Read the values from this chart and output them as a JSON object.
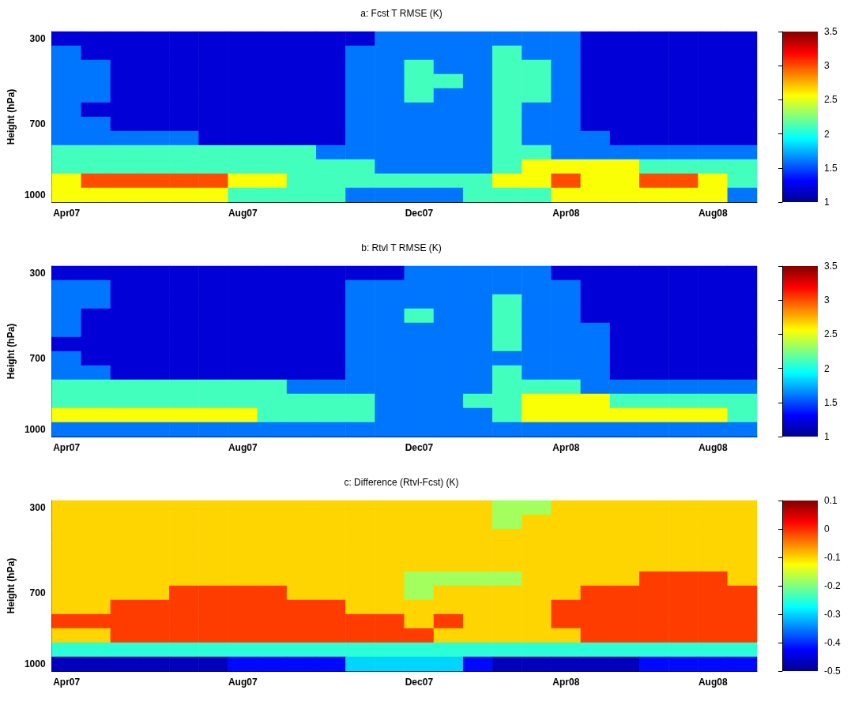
{
  "chart_data": [
    {
      "type": "heatmap",
      "title": "a: Fcst T RMSE (K)",
      "ylabel": "Height (hPa)",
      "categories": [
        "Apr07",
        null,
        null,
        null,
        null,
        null,
        "Aug07",
        null,
        null,
        null,
        null,
        null,
        "Dec07",
        null,
        null,
        null,
        null,
        "Apr08",
        null,
        null,
        null,
        null,
        "Aug08",
        null
      ],
      "y_categories": [
        "300",
        null,
        null,
        null,
        null,
        null,
        "700",
        null,
        null,
        null,
        null,
        "1000"
      ],
      "clim": [
        1,
        3.5
      ],
      "cticks": [
        1,
        1.5,
        2,
        2.5,
        3,
        3.5
      ],
      "cells": [
        [
          1.2,
          1.2,
          1.2,
          1.2,
          1.2,
          1.2,
          1.2,
          1.2,
          1.2,
          1.2,
          1.2,
          1.6,
          1.6,
          1.6,
          1.6,
          1.6,
          1.6,
          1.6,
          1.2,
          1.2,
          1.2,
          1.2,
          1.2,
          1.2
        ],
        [
          1.6,
          1.2,
          1.2,
          1.2,
          1.2,
          1.2,
          1.2,
          1.2,
          1.2,
          1.2,
          1.6,
          1.6,
          1.6,
          1.6,
          1.6,
          2.1,
          1.6,
          1.6,
          1.2,
          1.2,
          1.2,
          1.2,
          1.2,
          1.2
        ],
        [
          1.6,
          1.6,
          1.2,
          1.2,
          1.2,
          1.2,
          1.2,
          1.2,
          1.2,
          1.2,
          1.6,
          1.6,
          2.1,
          1.6,
          1.6,
          2.1,
          2.1,
          1.6,
          1.2,
          1.2,
          1.2,
          1.2,
          1.2,
          1.2
        ],
        [
          1.6,
          1.6,
          1.2,
          1.2,
          1.2,
          1.2,
          1.2,
          1.2,
          1.2,
          1.2,
          1.6,
          1.6,
          2.1,
          2.1,
          1.6,
          2.1,
          2.1,
          1.6,
          1.2,
          1.2,
          1.2,
          1.2,
          1.2,
          1.2
        ],
        [
          1.6,
          1.6,
          1.2,
          1.2,
          1.2,
          1.2,
          1.2,
          1.2,
          1.2,
          1.2,
          1.6,
          1.6,
          2.1,
          1.6,
          1.6,
          2.1,
          2.1,
          1.6,
          1.2,
          1.2,
          1.2,
          1.2,
          1.2,
          1.2
        ],
        [
          1.6,
          1.2,
          1.2,
          1.2,
          1.2,
          1.2,
          1.2,
          1.2,
          1.2,
          1.2,
          1.6,
          1.6,
          1.6,
          1.6,
          1.6,
          2.1,
          1.6,
          1.6,
          1.2,
          1.2,
          1.2,
          1.2,
          1.2,
          1.2
        ],
        [
          1.6,
          1.6,
          1.2,
          1.2,
          1.2,
          1.2,
          1.2,
          1.2,
          1.2,
          1.2,
          1.6,
          1.6,
          1.6,
          1.6,
          1.6,
          2.1,
          1.6,
          1.6,
          1.2,
          1.2,
          1.2,
          1.2,
          1.2,
          1.2
        ],
        [
          1.6,
          1.6,
          1.6,
          1.6,
          1.6,
          1.2,
          1.2,
          1.2,
          1.2,
          1.2,
          1.6,
          1.6,
          1.6,
          1.6,
          1.6,
          2.1,
          1.6,
          1.6,
          1.6,
          1.2,
          1.2,
          1.2,
          1.2,
          1.2
        ],
        [
          2.1,
          2.1,
          2.1,
          2.1,
          2.1,
          2.1,
          2.1,
          2.1,
          2.1,
          1.6,
          1.6,
          1.6,
          1.6,
          1.6,
          1.6,
          2.1,
          2.1,
          1.6,
          1.6,
          1.6,
          1.6,
          1.6,
          1.6,
          1.6
        ],
        [
          2.1,
          2.1,
          2.1,
          2.1,
          2.1,
          2.1,
          2.1,
          2.1,
          2.1,
          2.1,
          2.1,
          1.6,
          1.6,
          1.6,
          1.6,
          2.1,
          2.55,
          2.55,
          2.55,
          2.55,
          2.1,
          2.1,
          2.1,
          2.1
        ],
        [
          2.55,
          3,
          3,
          3,
          3,
          3,
          2.55,
          2.55,
          2.1,
          2.1,
          2.1,
          2.1,
          2.1,
          2.1,
          2.1,
          2.55,
          2.55,
          3,
          2.55,
          2.55,
          3,
          3,
          2.55,
          2.1
        ],
        [
          2.55,
          2.55,
          2.55,
          2.55,
          2.55,
          2.55,
          2.1,
          2.1,
          2.1,
          2.1,
          1.6,
          1.6,
          1.6,
          1.6,
          2.1,
          2.1,
          2.1,
          2.55,
          2.55,
          2.55,
          2.55,
          2.55,
          2.55,
          1.6
        ]
      ]
    },
    {
      "type": "heatmap",
      "title": "b: Rtvl T RMSE (K)",
      "ylabel": "Height (hPa)",
      "categories": [
        "Apr07",
        null,
        null,
        null,
        null,
        null,
        "Aug07",
        null,
        null,
        null,
        null,
        null,
        "Dec07",
        null,
        null,
        null,
        null,
        "Apr08",
        null,
        null,
        null,
        null,
        "Aug08",
        null
      ],
      "y_categories": [
        "300",
        null,
        null,
        null,
        null,
        null,
        "700",
        null,
        null,
        null,
        null,
        "1000"
      ],
      "clim": [
        1,
        3.5
      ],
      "cticks": [
        1,
        1.5,
        2,
        2.5,
        3,
        3.5
      ],
      "cells": [
        [
          1.2,
          1.2,
          1.2,
          1.2,
          1.2,
          1.2,
          1.2,
          1.2,
          1.2,
          1.2,
          1.2,
          1.2,
          1.6,
          1.6,
          1.6,
          1.6,
          1.6,
          1.2,
          1.2,
          1.2,
          1.2,
          1.2,
          1.2,
          1.2
        ],
        [
          1.6,
          1.6,
          1.2,
          1.2,
          1.2,
          1.2,
          1.2,
          1.2,
          1.2,
          1.2,
          1.6,
          1.6,
          1.6,
          1.6,
          1.6,
          1.6,
          1.6,
          1.6,
          1.2,
          1.2,
          1.2,
          1.2,
          1.2,
          1.2
        ],
        [
          1.6,
          1.6,
          1.2,
          1.2,
          1.2,
          1.2,
          1.2,
          1.2,
          1.2,
          1.2,
          1.6,
          1.6,
          1.6,
          1.6,
          1.6,
          2.1,
          1.6,
          1.6,
          1.2,
          1.2,
          1.2,
          1.2,
          1.2,
          1.2
        ],
        [
          1.6,
          1.2,
          1.2,
          1.2,
          1.2,
          1.2,
          1.2,
          1.2,
          1.2,
          1.2,
          1.6,
          1.6,
          2.1,
          1.6,
          1.6,
          2.1,
          1.6,
          1.6,
          1.2,
          1.2,
          1.2,
          1.2,
          1.2,
          1.2
        ],
        [
          1.6,
          1.2,
          1.2,
          1.2,
          1.2,
          1.2,
          1.2,
          1.2,
          1.2,
          1.2,
          1.6,
          1.6,
          1.6,
          1.6,
          1.6,
          2.1,
          1.6,
          1.6,
          1.6,
          1.2,
          1.2,
          1.2,
          1.2,
          1.2
        ],
        [
          1.2,
          1.2,
          1.2,
          1.2,
          1.2,
          1.2,
          1.2,
          1.2,
          1.2,
          1.2,
          1.6,
          1.6,
          1.6,
          1.6,
          1.6,
          2.1,
          1.6,
          1.6,
          1.6,
          1.2,
          1.2,
          1.2,
          1.2,
          1.2
        ],
        [
          1.6,
          1.2,
          1.2,
          1.2,
          1.2,
          1.2,
          1.2,
          1.2,
          1.2,
          1.2,
          1.6,
          1.6,
          1.6,
          1.6,
          1.6,
          1.6,
          1.6,
          1.6,
          1.6,
          1.2,
          1.2,
          1.2,
          1.2,
          1.2
        ],
        [
          1.6,
          1.6,
          1.2,
          1.2,
          1.2,
          1.2,
          1.2,
          1.2,
          1.2,
          1.2,
          1.6,
          1.6,
          1.6,
          1.6,
          1.6,
          2.1,
          1.6,
          1.6,
          1.6,
          1.2,
          1.2,
          1.2,
          1.2,
          1.2
        ],
        [
          2.1,
          2.1,
          2.1,
          2.1,
          2.1,
          2.1,
          2.1,
          2.1,
          1.6,
          1.6,
          1.6,
          1.6,
          1.6,
          1.6,
          1.6,
          2.1,
          2.1,
          2.1,
          1.6,
          1.6,
          1.6,
          1.6,
          1.6,
          1.6
        ],
        [
          2.1,
          2.1,
          2.1,
          2.1,
          2.1,
          2.1,
          2.1,
          2.1,
          2.1,
          2.1,
          2.1,
          1.6,
          1.6,
          1.6,
          2.1,
          2.1,
          2.55,
          2.55,
          2.55,
          2.1,
          2.1,
          2.1,
          2.1,
          2.1
        ],
        [
          2.55,
          2.55,
          2.55,
          2.55,
          2.55,
          2.55,
          2.55,
          2.1,
          2.1,
          2.1,
          2.1,
          1.6,
          1.6,
          1.6,
          1.6,
          2.1,
          2.55,
          2.55,
          2.55,
          2.55,
          2.55,
          2.55,
          2.55,
          2.1
        ],
        [
          1.6,
          1.6,
          1.6,
          1.6,
          1.6,
          1.6,
          1.6,
          1.6,
          1.6,
          1.6,
          1.6,
          1.6,
          1.6,
          1.6,
          1.6,
          1.6,
          1.6,
          1.6,
          1.6,
          1.6,
          1.6,
          1.6,
          1.6,
          1.6
        ]
      ]
    },
    {
      "type": "heatmap",
      "title": "c: Difference (Rtvl-Fcst) (K)",
      "ylabel": "Height (hPa)",
      "categories": [
        "Apr07",
        null,
        null,
        null,
        null,
        null,
        "Aug07",
        null,
        null,
        null,
        null,
        null,
        "Dec07",
        null,
        null,
        null,
        null,
        "Apr08",
        null,
        null,
        null,
        null,
        "Aug08",
        null
      ],
      "y_categories": [
        "300",
        null,
        null,
        null,
        null,
        null,
        "700",
        null,
        null,
        null,
        null,
        "1000"
      ],
      "clim": [
        -0.5,
        0.1
      ],
      "cticks": [
        -0.5,
        -0.4,
        -0.3,
        -0.2,
        -0.1,
        0,
        0.1
      ],
      "cells": [
        [
          -0.1,
          -0.1,
          -0.1,
          -0.1,
          -0.1,
          -0.1,
          -0.1,
          -0.1,
          -0.1,
          -0.1,
          -0.1,
          -0.1,
          -0.1,
          -0.1,
          -0.1,
          -0.18,
          -0.18,
          -0.1,
          -0.1,
          -0.1,
          -0.1,
          -0.1,
          -0.1,
          -0.1
        ],
        [
          -0.1,
          -0.1,
          -0.1,
          -0.1,
          -0.1,
          -0.1,
          -0.1,
          -0.1,
          -0.1,
          -0.1,
          -0.1,
          -0.1,
          -0.1,
          -0.1,
          -0.1,
          -0.18,
          -0.1,
          -0.1,
          -0.1,
          -0.1,
          -0.1,
          -0.1,
          -0.1,
          -0.1
        ],
        [
          -0.1,
          -0.1,
          -0.1,
          -0.1,
          -0.1,
          -0.1,
          -0.1,
          -0.1,
          -0.1,
          -0.1,
          -0.1,
          -0.1,
          -0.1,
          -0.1,
          -0.1,
          -0.1,
          -0.1,
          -0.1,
          -0.1,
          -0.1,
          -0.1,
          -0.1,
          -0.1,
          -0.1
        ],
        [
          -0.1,
          -0.1,
          -0.1,
          -0.1,
          -0.1,
          -0.1,
          -0.1,
          -0.1,
          -0.1,
          -0.1,
          -0.1,
          -0.1,
          -0.1,
          -0.1,
          -0.1,
          -0.1,
          -0.1,
          -0.1,
          -0.1,
          -0.1,
          -0.1,
          -0.1,
          -0.1,
          -0.1
        ],
        [
          -0.1,
          -0.1,
          -0.1,
          -0.1,
          -0.1,
          -0.1,
          -0.1,
          -0.1,
          -0.1,
          -0.1,
          -0.1,
          -0.1,
          -0.1,
          -0.1,
          -0.1,
          -0.1,
          -0.1,
          -0.1,
          -0.1,
          -0.1,
          -0.1,
          -0.1,
          -0.1,
          -0.1
        ],
        [
          -0.1,
          -0.1,
          -0.1,
          -0.1,
          -0.1,
          -0.1,
          -0.1,
          -0.1,
          -0.1,
          -0.1,
          -0.1,
          -0.1,
          -0.18,
          -0.18,
          -0.18,
          -0.18,
          -0.1,
          -0.1,
          -0.1,
          -0.1,
          -0.01,
          -0.01,
          -0.01,
          -0.1
        ],
        [
          -0.1,
          -0.1,
          -0.1,
          -0.1,
          -0.01,
          -0.01,
          -0.01,
          -0.01,
          -0.1,
          -0.1,
          -0.1,
          -0.1,
          -0.18,
          -0.1,
          -0.1,
          -0.1,
          -0.1,
          -0.1,
          -0.01,
          -0.01,
          -0.01,
          -0.01,
          -0.01,
          -0.01
        ],
        [
          -0.1,
          -0.1,
          -0.01,
          -0.01,
          -0.01,
          -0.01,
          -0.01,
          -0.01,
          -0.01,
          -0.01,
          -0.1,
          -0.1,
          -0.1,
          -0.1,
          -0.1,
          -0.1,
          -0.1,
          -0.01,
          -0.01,
          -0.01,
          -0.01,
          -0.01,
          -0.01,
          -0.01
        ],
        [
          -0.01,
          -0.01,
          -0.01,
          -0.01,
          -0.01,
          -0.01,
          -0.01,
          -0.01,
          -0.01,
          -0.01,
          -0.01,
          -0.01,
          -0.1,
          -0.01,
          -0.1,
          -0.1,
          -0.1,
          -0.01,
          -0.01,
          -0.01,
          -0.01,
          -0.01,
          -0.01,
          -0.01
        ],
        [
          -0.1,
          -0.1,
          -0.01,
          -0.01,
          -0.01,
          -0.01,
          -0.01,
          -0.01,
          -0.01,
          -0.01,
          -0.01,
          -0.01,
          -0.01,
          -0.1,
          -0.1,
          -0.1,
          -0.1,
          -0.1,
          -0.01,
          -0.01,
          -0.01,
          -0.01,
          -0.01,
          -0.01
        ],
        [
          -0.25,
          -0.25,
          -0.25,
          -0.25,
          -0.25,
          -0.25,
          -0.25,
          -0.25,
          -0.25,
          -0.25,
          -0.25,
          -0.25,
          -0.25,
          -0.25,
          -0.25,
          -0.25,
          -0.25,
          -0.25,
          -0.25,
          -0.25,
          -0.25,
          -0.25,
          -0.25,
          -0.25
        ],
        [
          -0.47,
          -0.47,
          -0.47,
          -0.47,
          -0.47,
          -0.47,
          -0.42,
          -0.42,
          -0.42,
          -0.42,
          -0.3,
          -0.3,
          -0.3,
          -0.3,
          -0.42,
          -0.47,
          -0.47,
          -0.47,
          -0.47,
          -0.47,
          -0.42,
          -0.42,
          -0.42,
          -0.42
        ]
      ]
    }
  ]
}
